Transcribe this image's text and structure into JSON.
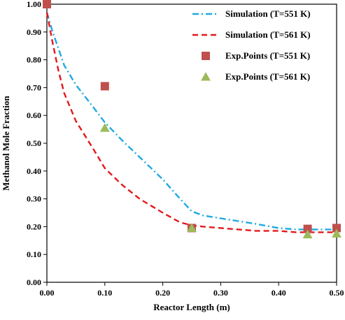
{
  "chart_data": {
    "type": "line",
    "xlabel": "Reactor Length (m)",
    "ylabel": "Methanol Mole Fraction",
    "xlim": [
      0,
      0.5
    ],
    "ylim": [
      0,
      1.0
    ],
    "x_ticks": [
      "0.00",
      "0.10",
      "0.20",
      "0.30",
      "0.40",
      "0.50"
    ],
    "y_ticks": [
      "0.00",
      "0.10",
      "0.20",
      "0.30",
      "0.40",
      "0.50",
      "0.60",
      "0.70",
      "0.80",
      "0.90",
      "1.00"
    ],
    "grid": false,
    "legend_position": "top-right",
    "series": [
      {
        "name": "Simulation (T=551 K)",
        "kind": "line",
        "style": "dash-dot",
        "color": "#1fa9e1",
        "x": [
          0.0,
          0.01,
          0.02,
          0.03,
          0.05,
          0.08,
          0.1,
          0.13,
          0.16,
          0.2,
          0.23,
          0.25,
          0.27,
          0.3,
          0.33,
          0.36,
          0.4,
          0.43,
          0.45,
          0.48,
          0.5
        ],
        "y": [
          0.97,
          0.9,
          0.84,
          0.78,
          0.71,
          0.63,
          0.575,
          0.51,
          0.45,
          0.37,
          0.3,
          0.255,
          0.24,
          0.23,
          0.22,
          0.21,
          0.195,
          0.19,
          0.19,
          0.19,
          0.19
        ]
      },
      {
        "name": "Simulation (T=561 K)",
        "kind": "line",
        "style": "dashed",
        "color": "#e3191c",
        "x": [
          0.0,
          0.01,
          0.02,
          0.03,
          0.05,
          0.08,
          0.1,
          0.13,
          0.16,
          0.2,
          0.23,
          0.25,
          0.27,
          0.3,
          0.33,
          0.36,
          0.4,
          0.43,
          0.45,
          0.48,
          0.5
        ],
        "y": [
          0.97,
          0.86,
          0.76,
          0.68,
          0.58,
          0.48,
          0.41,
          0.35,
          0.3,
          0.25,
          0.215,
          0.205,
          0.2,
          0.195,
          0.19,
          0.185,
          0.185,
          0.18,
          0.18,
          0.18,
          0.18
        ]
      },
      {
        "name": "Exp.Points (T=551 K)",
        "kind": "marker",
        "marker": "square",
        "color": "#c0504d",
        "x": [
          0.0,
          0.1,
          0.25,
          0.45,
          0.5
        ],
        "y": [
          1.0,
          0.705,
          0.195,
          0.192,
          0.195
        ]
      },
      {
        "name": "Exp.Points (T=561 K)",
        "kind": "marker",
        "marker": "triangle",
        "color": "#9bbb59",
        "x": [
          0.1,
          0.25,
          0.45,
          0.5
        ],
        "y": [
          0.555,
          0.195,
          0.172,
          0.175
        ]
      }
    ]
  }
}
